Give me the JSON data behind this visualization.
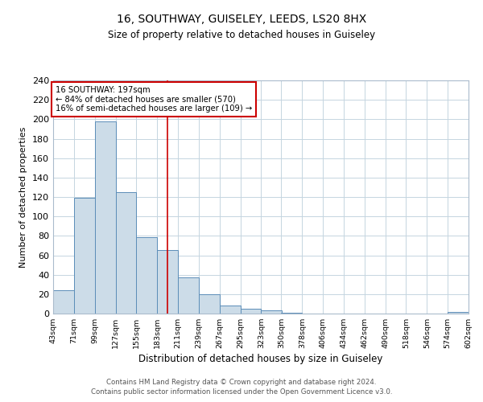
{
  "title": "16, SOUTHWAY, GUISELEY, LEEDS, LS20 8HX",
  "subtitle": "Size of property relative to detached houses in Guiseley",
  "xlabel": "Distribution of detached houses by size in Guiseley",
  "ylabel": "Number of detached properties",
  "bin_edges": [
    43,
    71,
    99,
    127,
    155,
    183,
    211,
    239,
    267,
    295,
    323,
    350,
    378,
    406,
    434,
    462,
    490,
    518,
    546,
    574,
    602
  ],
  "bin_counts": [
    24,
    119,
    198,
    125,
    79,
    65,
    37,
    20,
    8,
    5,
    3,
    1,
    0,
    0,
    0,
    0,
    0,
    0,
    0,
    2
  ],
  "bar_facecolor": "#ccdce8",
  "bar_edgecolor": "#5b8db8",
  "reference_line_x": 197,
  "reference_line_color": "#cc0000",
  "annotation_box_edgecolor": "#cc0000",
  "annotation_text_line1": "16 SOUTHWAY: 197sqm",
  "annotation_text_line2": "← 84% of detached houses are smaller (570)",
  "annotation_text_line3": "16% of semi-detached houses are larger (109) →",
  "ylim": [
    0,
    240
  ],
  "yticks": [
    0,
    20,
    40,
    60,
    80,
    100,
    120,
    140,
    160,
    180,
    200,
    220,
    240
  ],
  "tick_labels": [
    "43sqm",
    "71sqm",
    "99sqm",
    "127sqm",
    "155sqm",
    "183sqm",
    "211sqm",
    "239sqm",
    "267sqm",
    "295sqm",
    "323sqm",
    "350sqm",
    "378sqm",
    "406sqm",
    "434sqm",
    "462sqm",
    "490sqm",
    "518sqm",
    "546sqm",
    "574sqm",
    "602sqm"
  ],
  "footer_line1": "Contains HM Land Registry data © Crown copyright and database right 2024.",
  "footer_line2": "Contains public sector information licensed under the Open Government Licence v3.0.",
  "background_color": "#ffffff",
  "grid_color": "#c5d5e0"
}
